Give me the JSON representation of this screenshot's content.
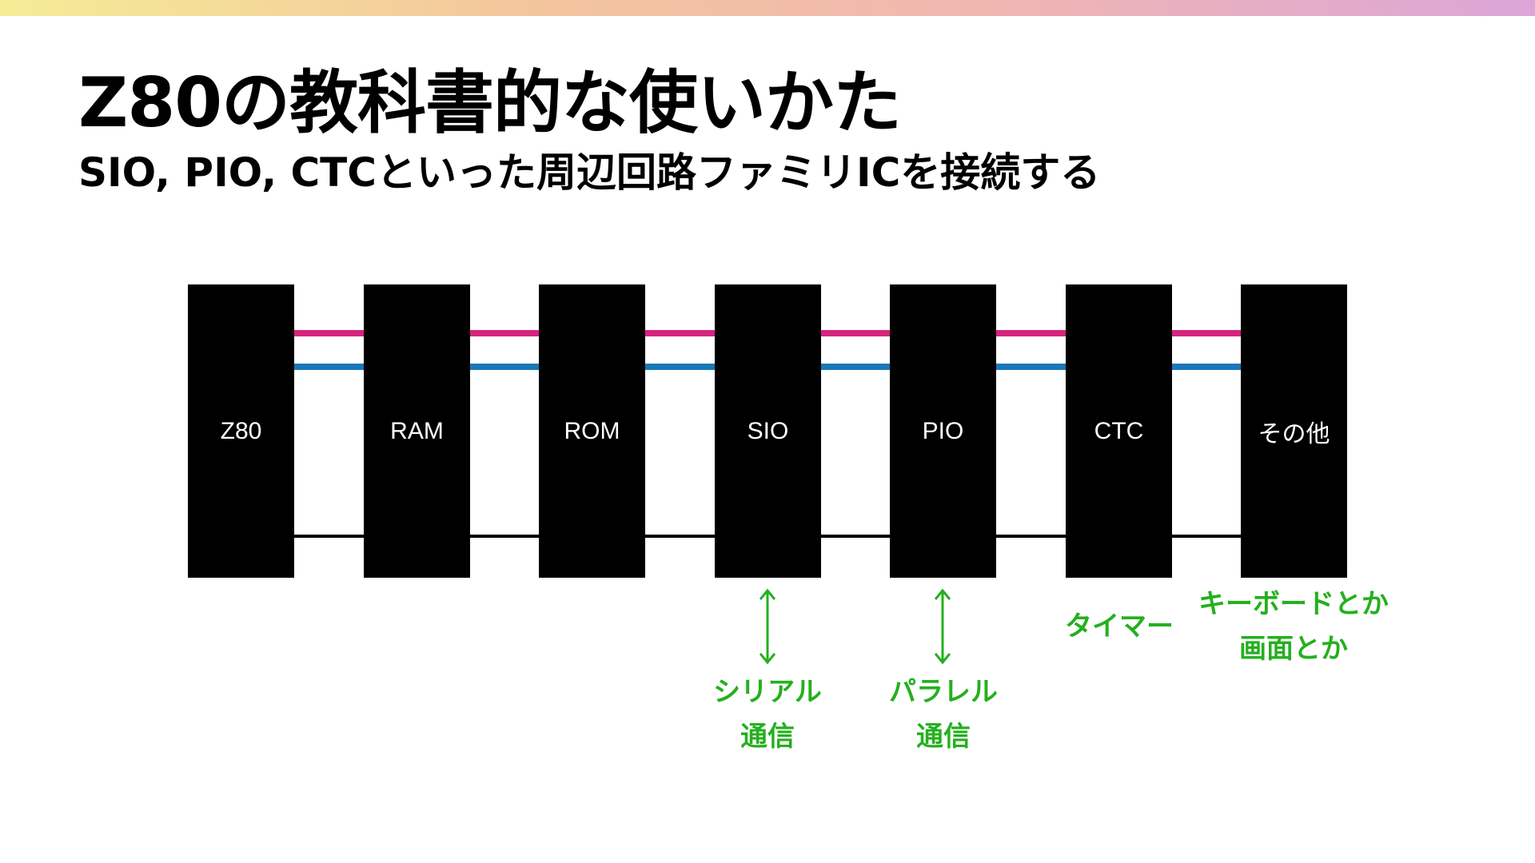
{
  "title": "Z80の教科書的な使いかた",
  "subtitle": "SIO, PIO, CTCといった周辺回路ファミリICを接続する",
  "colors": {
    "bus_magenta": "#d6247e",
    "bus_blue": "#1a78b8",
    "bus_black": "#000000",
    "annotation_green": "#24b01e"
  },
  "blocks": [
    "Z80",
    "RAM",
    "ROM",
    "SIO",
    "PIO",
    "CTC",
    "その他"
  ],
  "annotations": {
    "sio": {
      "line1": "シリアル",
      "line2": "通信"
    },
    "pio": {
      "line1": "パラレル",
      "line2": "通信"
    },
    "ctc": {
      "line1": "タイマー"
    },
    "other": {
      "line1": "キーボードとか",
      "line2": "画面とか"
    }
  },
  "icons": [
    "double-arrow-icon"
  ]
}
